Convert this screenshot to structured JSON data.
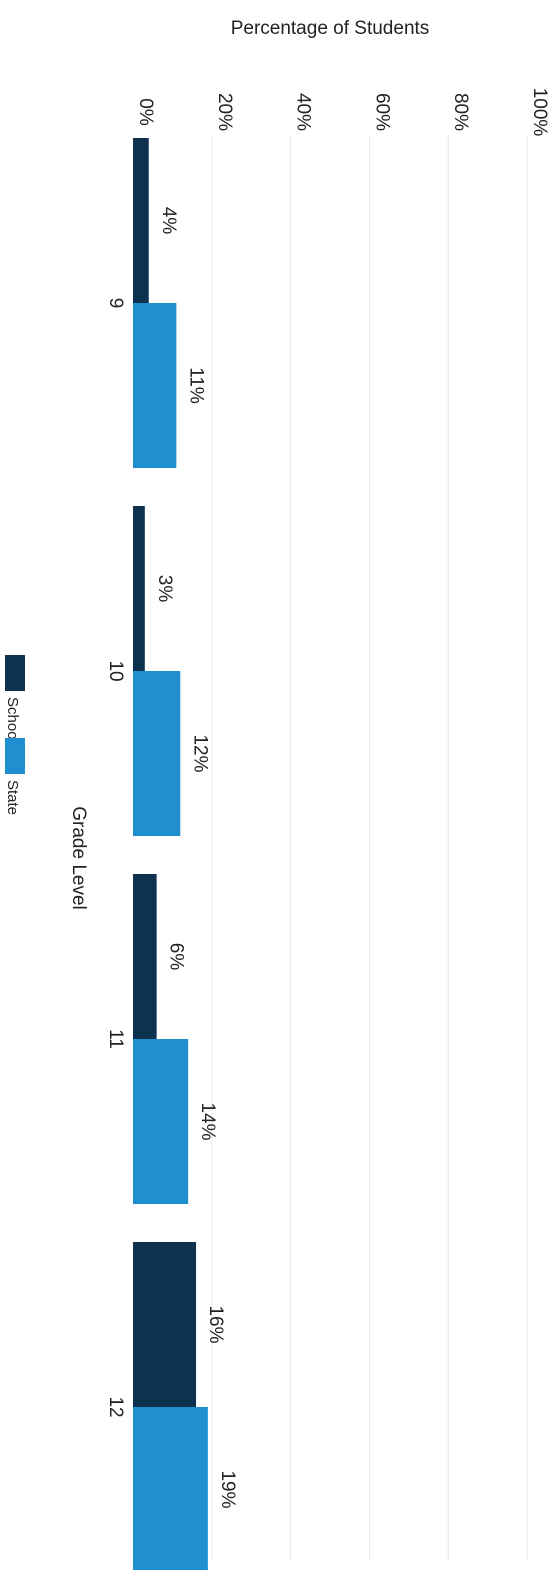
{
  "chart_data": {
    "type": "bar",
    "orientation": "horizontal",
    "categories": [
      "9",
      "10",
      "11",
      "12"
    ],
    "series": [
      {
        "name": "School",
        "values": [
          4,
          3,
          6,
          16
        ],
        "color": "#0e3150",
        "labels": [
          "4%",
          "3%",
          "6%",
          "16%"
        ]
      },
      {
        "name": "State",
        "values": [
          11,
          12,
          14,
          19
        ],
        "color": "#1f8fd0",
        "labels": [
          "11%",
          "12%",
          "14%",
          "19%"
        ]
      }
    ],
    "ylabel": "Percentage of Students",
    "xlabel": "Grade Level",
    "ylim": [
      0,
      100
    ],
    "ticks": [
      "0%",
      "20%",
      "40%",
      "60%",
      "80%",
      "100%"
    ],
    "grid": true,
    "legend": "bottom"
  }
}
